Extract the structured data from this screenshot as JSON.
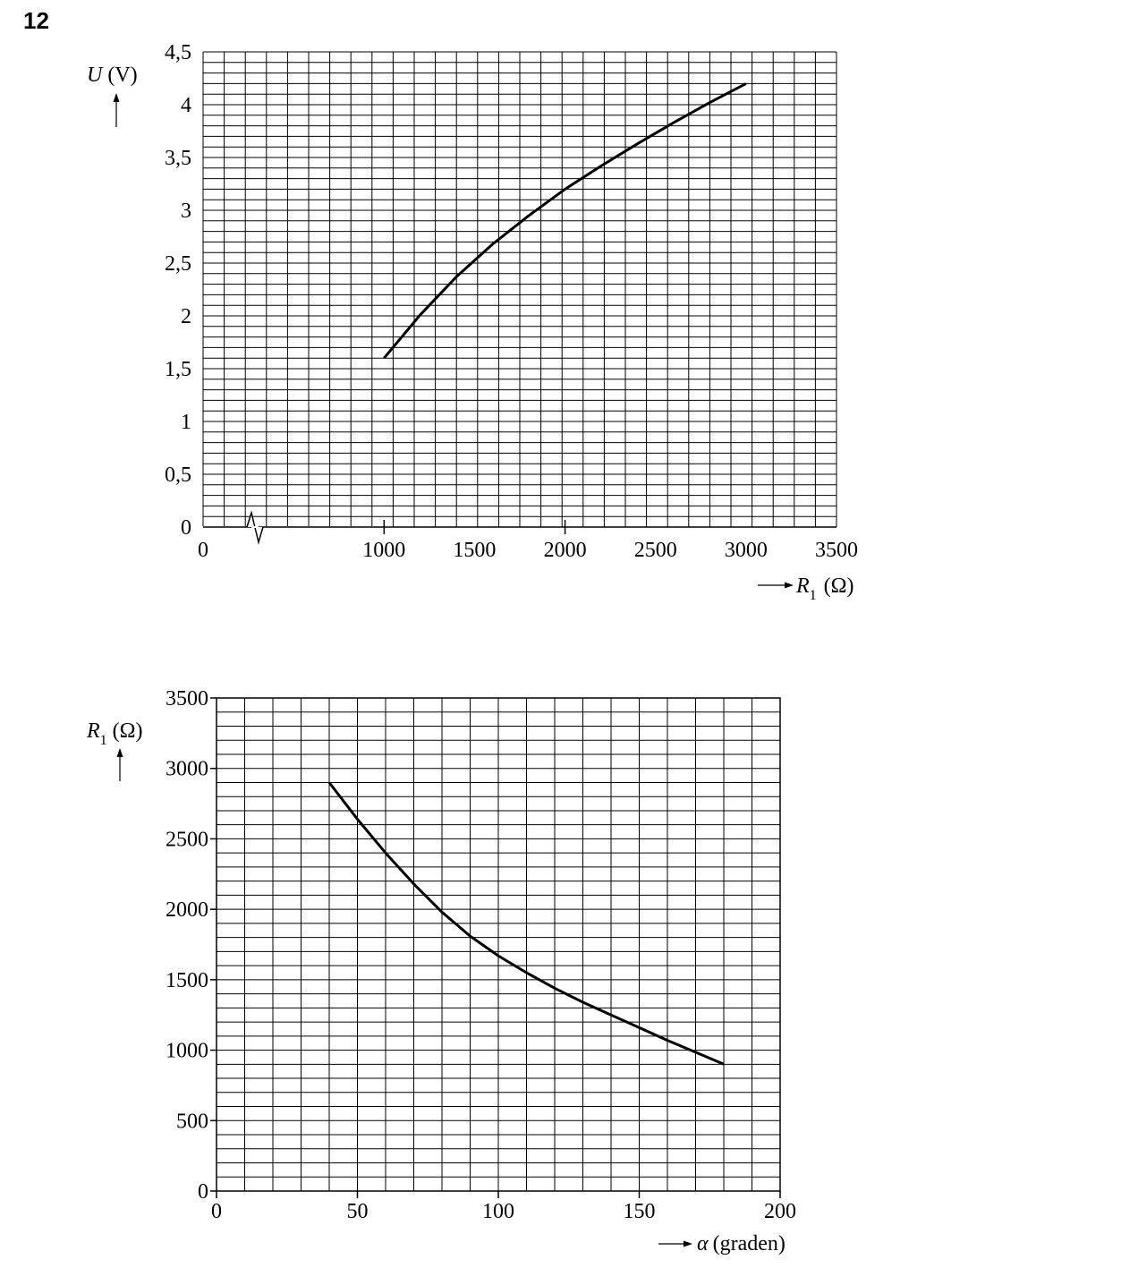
{
  "question_number": "12",
  "chart_data": [
    {
      "type": "line",
      "x_axis": {
        "symbol": "R",
        "subscript": "1",
        "unit": "(Ω)",
        "min": 0,
        "max": 3500,
        "ticks": [
          "0",
          "1000",
          "1500",
          "2000",
          "2500",
          "3000",
          "3500"
        ],
        "axis_break": "between 0 and 1000"
      },
      "y_axis": {
        "symbol": "U",
        "unit": "(V)",
        "min": 0,
        "max": 4.5,
        "ticks": [
          "0",
          "0,5",
          "1",
          "1,5",
          "2",
          "2,5",
          "3",
          "3,5",
          "4",
          "4,5"
        ]
      },
      "grid": true,
      "series": [
        {
          "points": [
            [
              1000,
              1.6
            ],
            [
              1200,
              2.01
            ],
            [
              1400,
              2.37
            ],
            [
              1600,
              2.68
            ],
            [
              1800,
              2.95
            ],
            [
              2000,
              3.2
            ],
            [
              2200,
              3.42
            ],
            [
              2400,
              3.63
            ],
            [
              2600,
              3.83
            ],
            [
              2800,
              4.02
            ],
            [
              3000,
              4.2
            ]
          ]
        }
      ]
    },
    {
      "type": "line",
      "x_axis": {
        "symbol": "α",
        "unit": "(graden)",
        "min": 0,
        "max": 200,
        "ticks": [
          "0",
          "50",
          "100",
          "150",
          "200"
        ]
      },
      "y_axis": {
        "symbol": "R",
        "subscript": "1",
        "unit": "(Ω)",
        "min": 0,
        "max": 3500,
        "ticks": [
          "0",
          "500",
          "1000",
          "1500",
          "2000",
          "2500",
          "3000",
          "3500"
        ]
      },
      "grid": true,
      "series": [
        {
          "points": [
            [
              40,
              2900
            ],
            [
              50,
              2640
            ],
            [
              60,
              2400
            ],
            [
              70,
              2180
            ],
            [
              80,
              1980
            ],
            [
              90,
              1810
            ],
            [
              100,
              1670
            ],
            [
              110,
              1550
            ],
            [
              120,
              1440
            ],
            [
              130,
              1340
            ],
            [
              140,
              1250
            ],
            [
              150,
              1160
            ],
            [
              160,
              1070
            ],
            [
              170,
              985
            ],
            [
              180,
              900
            ]
          ]
        }
      ]
    }
  ]
}
